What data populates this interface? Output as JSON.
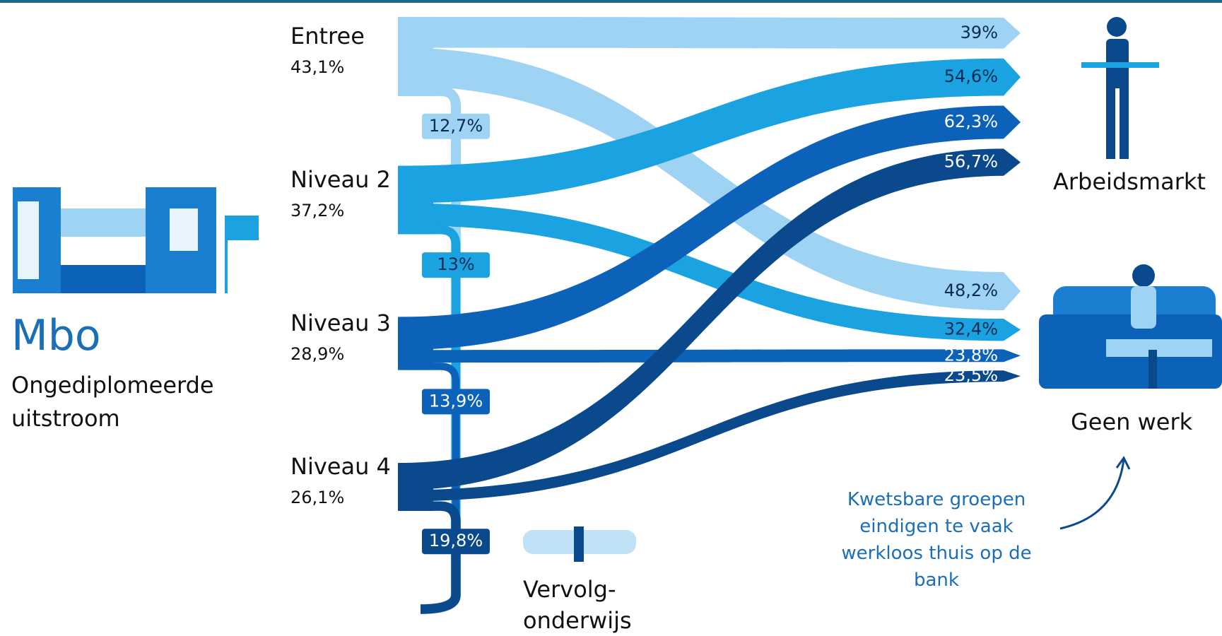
{
  "chart_data": {
    "type": "sankey",
    "title": "Mbo",
    "subtitle": "Ongediplomeerde uitstroom",
    "categories": [
      "Arbeidsmarkt",
      "Geen werk",
      "Vervolg-\nonderwijs"
    ],
    "series": [
      {
        "name": "Entree",
        "color": "#9fd3f3",
        "share": {
          "value": 43.1,
          "label": "43,1%"
        },
        "values": [
          39,
          48.2,
          12.7
        ],
        "value_labels": [
          "39%",
          "48,2%",
          "12,7%"
        ]
      },
      {
        "name": "Niveau 2",
        "color": "#1aa3e0",
        "share": {
          "value": 37.2,
          "label": "37,2%"
        },
        "values": [
          54.6,
          32.4,
          13
        ],
        "value_labels": [
          "54,6%",
          "32,4%",
          "13%"
        ]
      },
      {
        "name": "Niveau 3",
        "color": "#0c62b8",
        "share": {
          "value": 28.9,
          "label": "28,9%"
        },
        "values": [
          62.3,
          23.8,
          13.9
        ],
        "value_labels": [
          "62,3%",
          "23,8%",
          "13,9%"
        ]
      },
      {
        "name": "Niveau 4",
        "color": "#0a4a8c",
        "share": {
          "value": 26.1,
          "label": "26,1%"
        },
        "values": [
          56.7,
          23.5,
          19.8
        ],
        "value_labels": [
          "56,7%",
          "23,5%",
          "19,8%"
        ]
      }
    ],
    "annotation": "Kwetsbare groepen eindigen te vaak werkloos thuis op de bank"
  }
}
